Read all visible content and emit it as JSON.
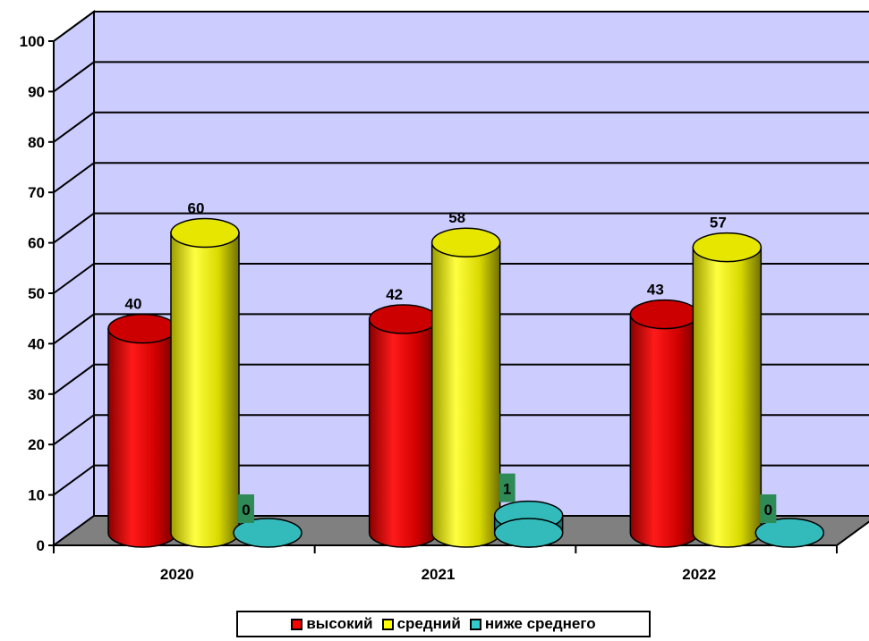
{
  "chart_data": {
    "type": "bar",
    "categories": [
      "2020",
      "2021",
      "2022"
    ],
    "series": [
      {
        "name": "высокий",
        "values": [
          40,
          42,
          43
        ],
        "color": "#ff0000"
      },
      {
        "name": "средний",
        "values": [
          60,
          58,
          57
        ],
        "color": "#ffff00"
      },
      {
        "name": "ниже среднего",
        "values": [
          0,
          1,
          0
        ],
        "color": "#33cccc"
      }
    ],
    "data_labels": [
      [
        "40",
        "42",
        "43"
      ],
      [
        "60",
        "58",
        "57"
      ],
      [
        "0",
        "1",
        "0"
      ]
    ],
    "ylim": [
      0,
      100
    ],
    "yticks": [
      "0",
      "10",
      "20",
      "30",
      "40",
      "50",
      "60",
      "70",
      "80",
      "90",
      "100"
    ],
    "grid": true,
    "style": "3d-cylinder",
    "wall_color": "#ccccff",
    "floor_color": "#808080",
    "legend_position": "bottom"
  }
}
